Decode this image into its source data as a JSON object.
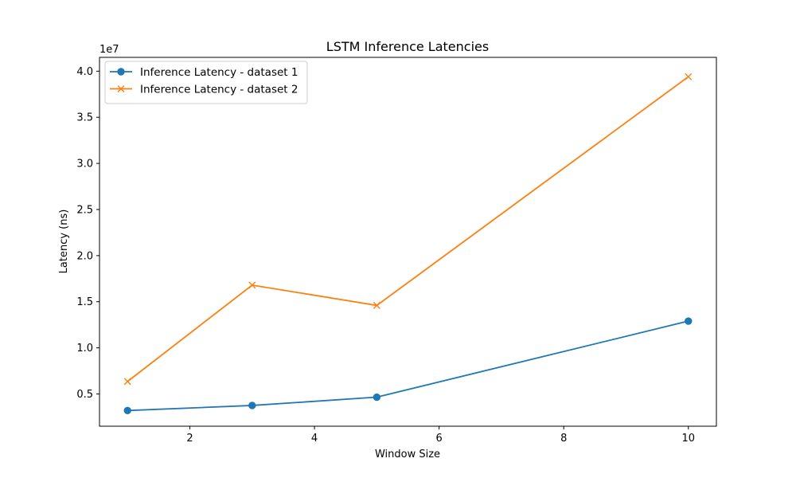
{
  "chart_data": {
    "type": "line",
    "title": "LSTM Inference Latencies",
    "xlabel": "Window Size",
    "ylabel": "Latency (ns)",
    "y_offset_label": "1e7",
    "y_scale": 10000000,
    "xlim": [
      0.55,
      10.45
    ],
    "ylim": [
      1500000,
      41500000
    ],
    "x_ticks": [
      2,
      4,
      6,
      8,
      10
    ],
    "x_tick_labels": [
      "2",
      "4",
      "6",
      "8",
      "10"
    ],
    "y_ticks": [
      5000000,
      10000000,
      15000000,
      20000000,
      25000000,
      30000000,
      35000000,
      40000000
    ],
    "y_tick_labels": [
      "0.5",
      "1.0",
      "1.5",
      "2.0",
      "2.5",
      "3.0",
      "3.5",
      "4.0"
    ],
    "grid": false,
    "legend_position": "top-left",
    "x": [
      1,
      3,
      5,
      10
    ],
    "series": [
      {
        "name": "Inference Latency - dataset 1",
        "color": "#1f77b4",
        "marker": "circle",
        "values": [
          3200000,
          3750000,
          4650000,
          12900000
        ]
      },
      {
        "name": "Inference Latency - dataset 2",
        "color": "#ff7f0e",
        "marker": "x",
        "values": [
          6350000,
          16800000,
          14600000,
          39400000
        ]
      }
    ]
  }
}
